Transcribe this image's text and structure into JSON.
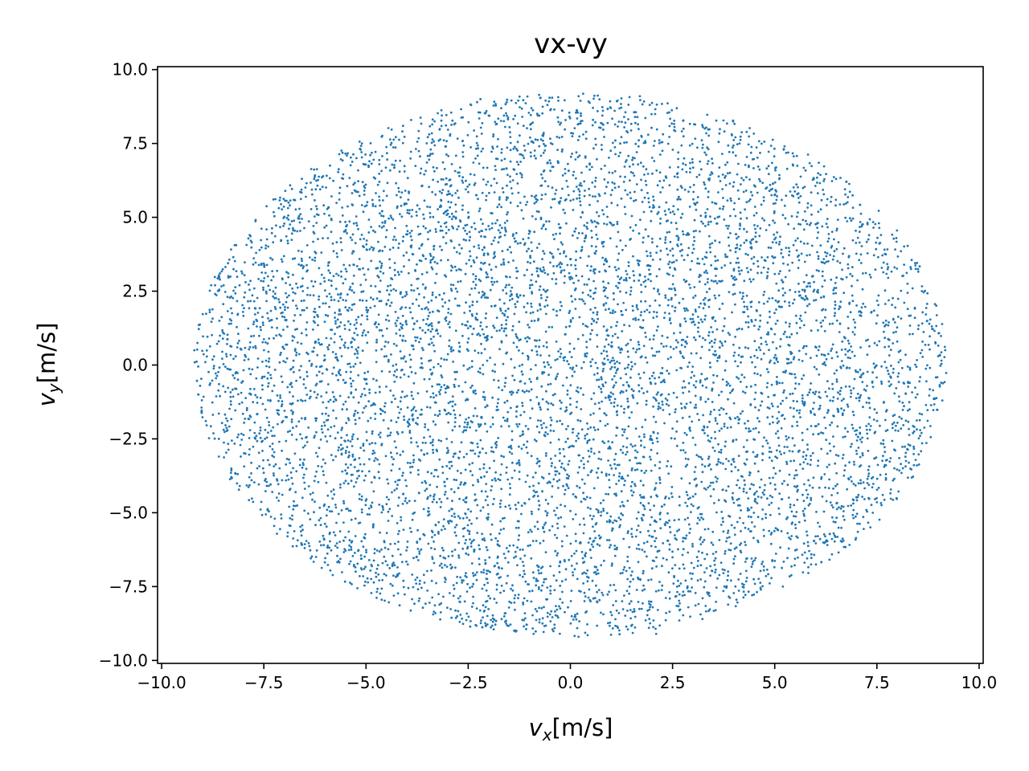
{
  "chart_data": {
    "type": "scatter",
    "title": "vx-vy",
    "xlabel": {
      "base": "v",
      "sub": "x",
      "unit": "[m/s]"
    },
    "ylabel": {
      "base": "v",
      "sub": "y",
      "unit": "[m/s]"
    },
    "xlim": [
      -10.1,
      10.1
    ],
    "ylim": [
      -10.1,
      10.1
    ],
    "xticks": [
      -10.0,
      -7.5,
      -5.0,
      -2.5,
      0.0,
      2.5,
      5.0,
      7.5,
      10.0
    ],
    "yticks": [
      -10.0,
      -7.5,
      -5.0,
      -2.5,
      0.0,
      2.5,
      5.0,
      7.5,
      10.0
    ],
    "xtick_labels": [
      "−10.0",
      "−7.5",
      "−5.0",
      "−2.5",
      "0.0",
      "2.5",
      "5.0",
      "7.5",
      "10.0"
    ],
    "ytick_labels": [
      "−10.0",
      "−7.5",
      "−5.0",
      "−2.5",
      "0.0",
      "2.5",
      "5.0",
      "7.5",
      "10.0"
    ],
    "grid": false,
    "legend": "none",
    "marker_color": "#1f77b4",
    "distribution": {
      "shape": "uniform ellipse",
      "center": [
        0.0,
        0.0
      ],
      "vx_range": [
        -9.2,
        9.2
      ],
      "vy_range": [
        -9.2,
        9.2
      ],
      "approx_point_count": 8000
    },
    "series": [
      {
        "points": [
          [
            -9.2,
            0.5
          ],
          [
            -9.1,
            -1.0
          ],
          [
            9.1,
            -1.2
          ],
          [
            9.0,
            0.3
          ],
          [
            1.7,
            9.1
          ],
          [
            0.2,
            9.1
          ],
          [
            -0.9,
            -9.1
          ],
          [
            0.2,
            -9.2
          ],
          [
            -2.2,
            9.0
          ],
          [
            2.1,
            -9.1
          ],
          [
            -8.6,
            -2.5
          ],
          [
            8.6,
            2.5
          ],
          [
            -5.1,
            7.5
          ],
          [
            5.2,
            -7.5
          ],
          [
            -6.1,
            -6.1
          ],
          [
            6.5,
            6.3
          ],
          [
            -3.2,
            -3.2
          ],
          [
            2.1,
            -4.0
          ],
          [
            4.0,
            3.2
          ],
          [
            -1.0,
            0.9
          ],
          [
            0.4,
            0.6
          ],
          [
            -0.2,
            -2.0
          ],
          [
            1.3,
            2.1
          ],
          [
            -4.5,
            0.3
          ],
          [
            5.5,
            -0.8
          ],
          [
            3.1,
            -6.5
          ],
          [
            -2.9,
            6.8
          ],
          [
            -7.4,
            3.0
          ],
          [
            7.1,
            -3.9
          ],
          [
            -1.8,
            -7.6
          ],
          [
            1.1,
            7.6
          ],
          [
            6.0,
            -5.8
          ],
          [
            -6.2,
            5.1
          ],
          [
            -8.3,
            1.4
          ],
          [
            8.3,
            -1.5
          ],
          [
            0.9,
            -5.3
          ],
          [
            -0.6,
            4.6
          ],
          [
            2.7,
            0.4
          ],
          [
            -2.4,
            -0.7
          ],
          [
            4.6,
            -3.6
          ],
          [
            -4.1,
            -4.7
          ],
          [
            3.8,
            6.4
          ],
          [
            -5.6,
            -2.2
          ],
          [
            5.8,
            2.0
          ],
          [
            -3.7,
            2.4
          ],
          [
            1.5,
            -1.6
          ],
          [
            -1.3,
            -1.4
          ],
          [
            0.0,
            -0.1
          ],
          [
            7.6,
            4.4
          ],
          [
            -7.8,
            -3.9
          ]
        ]
      }
    ]
  }
}
